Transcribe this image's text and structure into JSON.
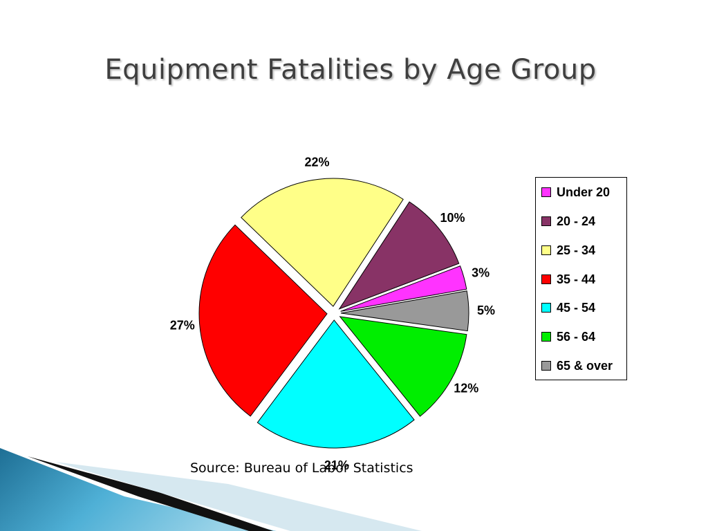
{
  "slide": {
    "title": "Equipment Fatalities by Age Group",
    "source": "Source: Bureau of Labor Statistics"
  },
  "chart_data": {
    "type": "pie",
    "categories": [
      "Under 20",
      "20 - 24",
      "25 - 34",
      "35 - 44",
      "45 - 54",
      "56 - 64",
      "65 & over"
    ],
    "values": [
      3,
      10,
      22,
      27,
      21,
      12,
      5
    ],
    "labels": [
      "3%",
      "10%",
      "22%",
      "27%",
      "21%",
      "12%",
      "5%"
    ],
    "colors": [
      "#ff33ff",
      "#883366",
      "#ffff88",
      "#ff0000",
      "#00ffff",
      "#00ee00",
      "#999999"
    ],
    "legend_position": "right"
  }
}
